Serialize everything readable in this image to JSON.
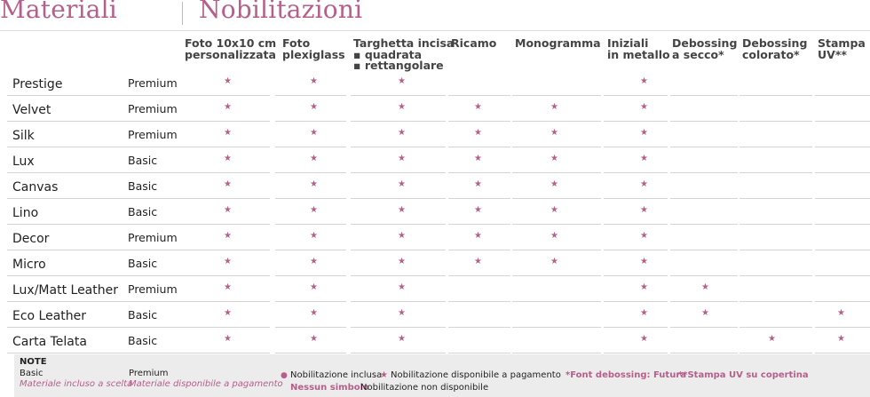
{
  "header": {
    "left_title": "Materiali",
    "right_title": "Nobilitazioni"
  },
  "columns": [
    {
      "lines": [
        "Foto 10x10 cm",
        "personalizzata"
      ]
    },
    {
      "lines": [
        "Foto",
        "plexiglass"
      ]
    },
    {
      "lines": [
        "Targhetta incisa",
        "▪ quadrata",
        "▪ rettangolare"
      ]
    },
    {
      "lines": [
        "Ricamo"
      ]
    },
    {
      "lines": [
        "Monogramma"
      ]
    },
    {
      "lines": [
        "Iniziali",
        "in metallo"
      ]
    },
    {
      "lines": [
        "Debossing",
        "a secco*"
      ]
    },
    {
      "lines": [
        "Debossing",
        "colorato*"
      ]
    },
    {
      "lines": [
        "Stampa",
        "UV**"
      ]
    }
  ],
  "rows": [
    {
      "material": "Prestige",
      "category": "Premium",
      "marks": [
        1,
        1,
        1,
        0,
        0,
        1,
        0,
        0,
        0
      ]
    },
    {
      "material": "Velvet",
      "category": "Premium",
      "marks": [
        1,
        1,
        1,
        1,
        1,
        1,
        0,
        0,
        0
      ]
    },
    {
      "material": "Silk",
      "category": "Premium",
      "marks": [
        1,
        1,
        1,
        1,
        1,
        1,
        0,
        0,
        0
      ]
    },
    {
      "material": "Lux",
      "category": "Basic",
      "marks": [
        1,
        1,
        1,
        1,
        1,
        1,
        0,
        0,
        0
      ]
    },
    {
      "material": "Canvas",
      "category": "Basic",
      "marks": [
        1,
        1,
        1,
        1,
        1,
        1,
        0,
        0,
        0
      ]
    },
    {
      "material": "Lino",
      "category": "Basic",
      "marks": [
        1,
        1,
        1,
        1,
        1,
        1,
        0,
        0,
        0
      ]
    },
    {
      "material": "Decor",
      "category": "Premium",
      "marks": [
        1,
        1,
        1,
        1,
        1,
        1,
        0,
        0,
        0
      ]
    },
    {
      "material": "Micro",
      "category": "Basic",
      "marks": [
        1,
        1,
        1,
        1,
        1,
        1,
        0,
        0,
        0
      ]
    },
    {
      "material": "Lux/Matt Leather",
      "category": "Premium",
      "marks": [
        1,
        1,
        1,
        0,
        0,
        1,
        1,
        0,
        0
      ]
    },
    {
      "material": "Eco Leather",
      "category": "Basic",
      "marks": [
        1,
        1,
        1,
        0,
        0,
        1,
        1,
        0,
        1
      ]
    },
    {
      "material": "Carta Telata",
      "category": "Basic",
      "marks": [
        1,
        1,
        1,
        0,
        0,
        1,
        0,
        1,
        1
      ]
    }
  ],
  "notes": {
    "title": "NOTE",
    "basic_label": "Basic",
    "basic_desc": "Materiale incluso a scelta",
    "premium_label": "Premium",
    "premium_desc": "Materiale disponibile a pagamento",
    "legend_included": "Nobilitazione inclusa",
    "legend_paid": "Nobilitazione disponibile a pagamento",
    "legend_none_label": "Nessun simbolo",
    "legend_none_desc": "Nobilitazione non disponibile",
    "font_note": "*Font debossing: Futura",
    "uv_note": "**Stampa UV su copertina"
  },
  "symbols": {
    "star": "★",
    "dot": "●"
  },
  "colors": {
    "accent": "#b65f8a",
    "notes_bg": "#ececec"
  }
}
